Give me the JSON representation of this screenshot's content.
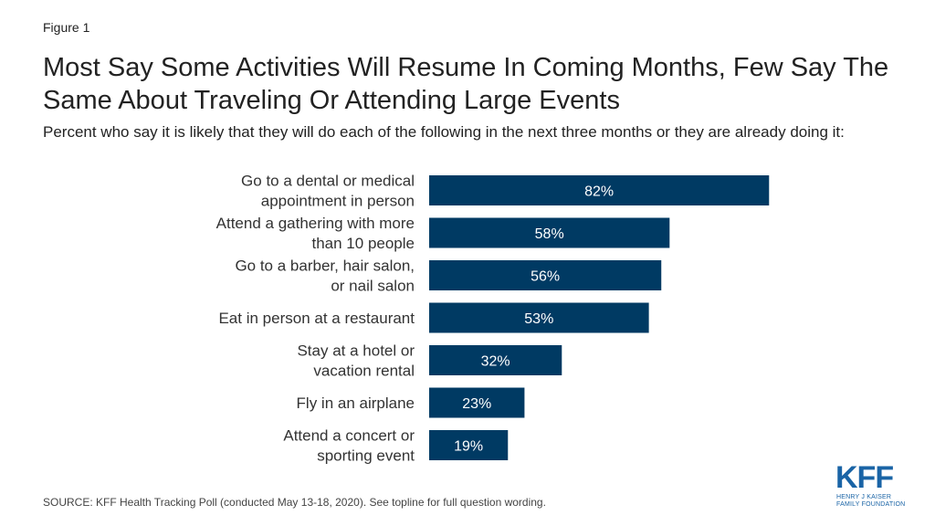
{
  "figure_label": "Figure 1",
  "title": "Most Say Some Activities Will Resume In Coming Months, Few Say The Same About Traveling Or Attending Large Events",
  "subtitle": "Percent who say it is likely that they will do each of the following in the next three months or they are already doing it:",
  "source": "SOURCE: KFF Health Tracking Poll (conducted May 13-18, 2020). See topline for full question wording.",
  "logo": {
    "name": "KFF",
    "line1": "HENRY J KAISER",
    "line2": "FAMILY FOUNDATION"
  },
  "colors": {
    "bar": "#003a63",
    "bar_label": "#ffffff",
    "category_label": "#333333"
  },
  "chart_data": {
    "type": "bar",
    "orientation": "horizontal",
    "categories": [
      [
        "Go to a dental or medical",
        "appointment in person"
      ],
      [
        "Attend a gathering with more",
        "than 10 people"
      ],
      [
        "Go to a barber, hair salon,",
        "or nail salon"
      ],
      [
        "Eat in person at a restaurant"
      ],
      [
        "Stay at a hotel or",
        "vacation rental"
      ],
      [
        "Fly in an airplane"
      ],
      [
        "Attend a concert or",
        "sporting event"
      ]
    ],
    "values": [
      82,
      58,
      56,
      53,
      32,
      23,
      19
    ],
    "value_labels": [
      "82%",
      "58%",
      "56%",
      "53%",
      "32%",
      "23%",
      "19%"
    ],
    "xlim": [
      0,
      100
    ],
    "grid": false,
    "legend": "none"
  }
}
